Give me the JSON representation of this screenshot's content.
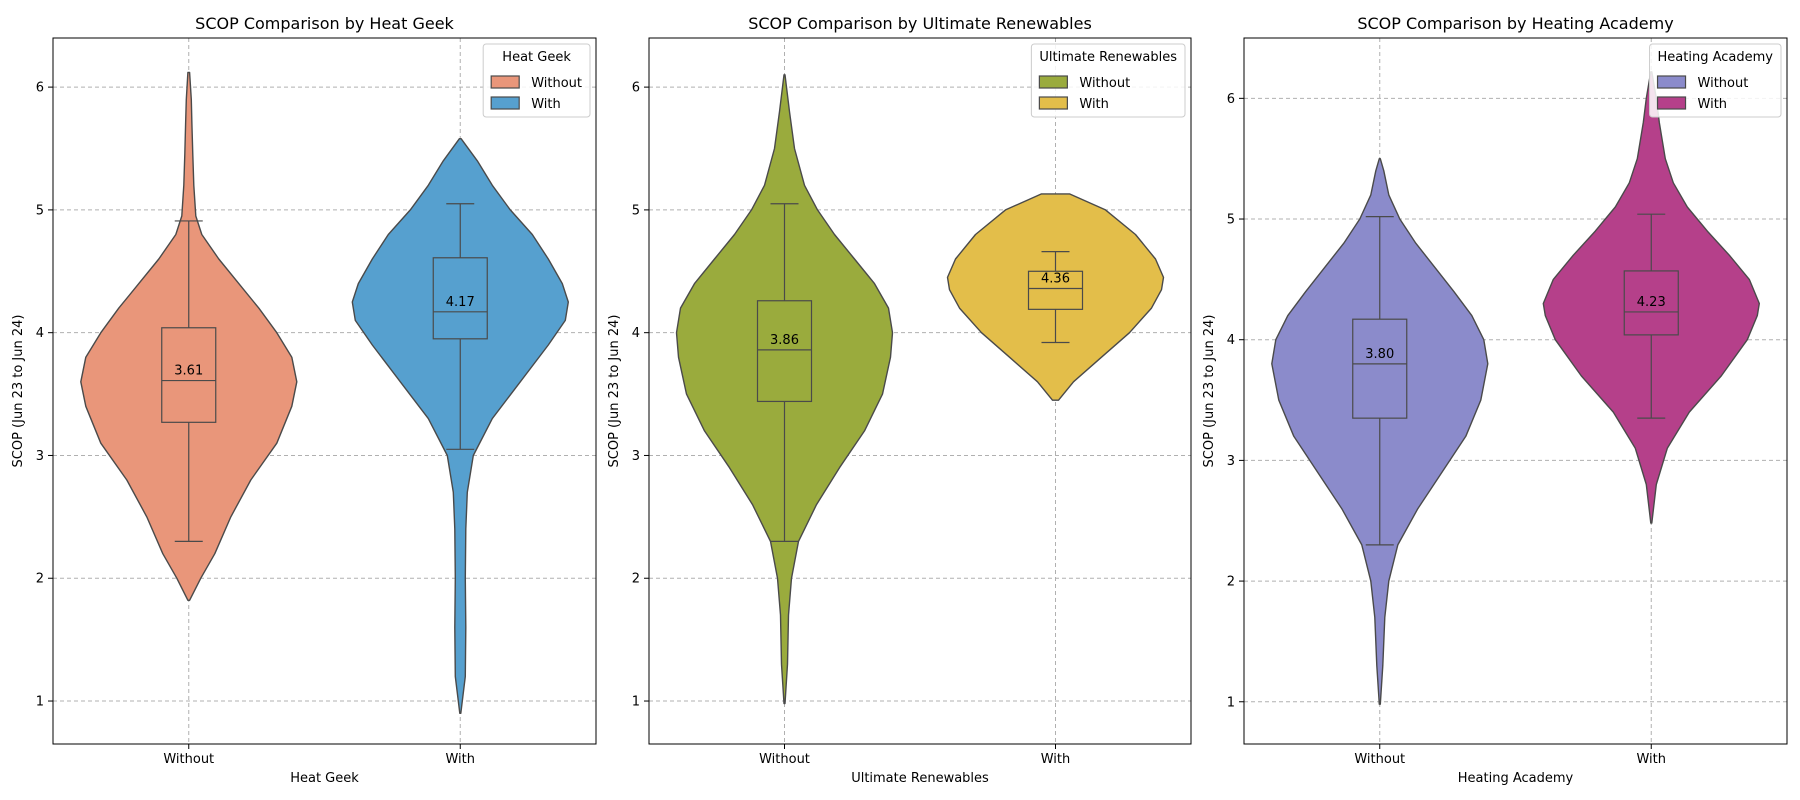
{
  "chart_data": [
    {
      "type": "violin",
      "title": "SCOP Comparison by Heat Geek",
      "xlabel": "Heat Geek",
      "ylabel": "SCOP (Jun 23 to Jun 24)",
      "ylim": [
        0.65,
        6.4
      ],
      "yticks": [
        1,
        2,
        3,
        4,
        5,
        6
      ],
      "grid": true,
      "legend": {
        "title": "Heat Geek",
        "placement": "top-right",
        "labels": [
          "Without",
          "With"
        ]
      },
      "categories": [
        "Without",
        "With"
      ],
      "groups": [
        {
          "category": "Without",
          "color": "#E9967A",
          "median_label": "3.61",
          "box": {
            "whisker_low": 2.3,
            "q1": 3.27,
            "median": 3.61,
            "q3": 4.04,
            "whisker_high": 4.91
          },
          "density": [
            [
              1.82,
              0.8
            ],
            [
              2.0,
              12
            ],
            [
              2.2,
              26
            ],
            [
              2.5,
              42
            ],
            [
              2.8,
              62
            ],
            [
              3.1,
              88
            ],
            [
              3.4,
              103
            ],
            [
              3.6,
              108
            ],
            [
              3.8,
              103
            ],
            [
              4.0,
              88
            ],
            [
              4.2,
              70
            ],
            [
              4.4,
              50
            ],
            [
              4.6,
              30
            ],
            [
              4.8,
              13
            ],
            [
              4.95,
              7
            ],
            [
              5.2,
              5
            ],
            [
              5.45,
              4
            ],
            [
              5.7,
              3.2
            ],
            [
              5.9,
              2.5
            ],
            [
              6.12,
              0.8
            ]
          ]
        },
        {
          "category": "With",
          "color": "#56A0CF",
          "median_label": "4.17",
          "box": {
            "whisker_low": 3.05,
            "q1": 3.95,
            "median": 4.17,
            "q3": 4.61,
            "whisker_high": 5.05
          },
          "density": [
            [
              0.9,
              0.5
            ],
            [
              1.2,
              5
            ],
            [
              1.6,
              5.5
            ],
            [
              2.0,
              5
            ],
            [
              2.4,
              5.5
            ],
            [
              2.7,
              7
            ],
            [
              3.0,
              13
            ],
            [
              3.3,
              32
            ],
            [
              3.6,
              60
            ],
            [
              3.9,
              88
            ],
            [
              4.1,
              105
            ],
            [
              4.25,
              108
            ],
            [
              4.4,
              102
            ],
            [
              4.6,
              88
            ],
            [
              4.8,
              72
            ],
            [
              5.0,
              50
            ],
            [
              5.2,
              32
            ],
            [
              5.4,
              17
            ],
            [
              5.58,
              0.8
            ]
          ]
        }
      ]
    },
    {
      "type": "violin",
      "title": "SCOP Comparison by Ultimate Renewables",
      "xlabel": "Ultimate Renewables",
      "ylabel": "SCOP (Jun 23 to Jun 24)",
      "ylim": [
        0.65,
        6.4
      ],
      "yticks": [
        1,
        2,
        3,
        4,
        5,
        6
      ],
      "grid": true,
      "legend": {
        "title": "Ultimate Renewables",
        "placement": "top-right",
        "labels": [
          "Without",
          "With"
        ]
      },
      "categories": [
        "Without",
        "With"
      ],
      "groups": [
        {
          "category": "Without",
          "color": "#9AAB3D",
          "median_label": "3.86",
          "box": {
            "whisker_low": 2.3,
            "q1": 3.44,
            "median": 3.86,
            "q3": 4.26,
            "whisker_high": 5.05
          },
          "density": [
            [
              0.98,
              0.5
            ],
            [
              1.3,
              3
            ],
            [
              1.7,
              4
            ],
            [
              2.0,
              7
            ],
            [
              2.3,
              14
            ],
            [
              2.6,
              32
            ],
            [
              2.9,
              55
            ],
            [
              3.2,
              80
            ],
            [
              3.5,
              98
            ],
            [
              3.8,
              106
            ],
            [
              4.0,
              108
            ],
            [
              4.2,
              104
            ],
            [
              4.4,
              90
            ],
            [
              4.6,
              70
            ],
            [
              4.8,
              50
            ],
            [
              5.0,
              33
            ],
            [
              5.2,
              20
            ],
            [
              5.5,
              10
            ],
            [
              5.8,
              5
            ],
            [
              6.1,
              0.5
            ]
          ]
        },
        {
          "category": "With",
          "color": "#E3BE4A",
          "median_label": "4.36",
          "box": {
            "whisker_low": 3.92,
            "q1": 4.19,
            "median": 4.36,
            "q3": 4.5,
            "whisker_high": 4.66
          },
          "density": [
            [
              3.45,
              3
            ],
            [
              3.6,
              18
            ],
            [
              3.8,
              46
            ],
            [
              4.0,
              74
            ],
            [
              4.2,
              96
            ],
            [
              4.35,
              106
            ],
            [
              4.45,
              108
            ],
            [
              4.6,
              100
            ],
            [
              4.8,
              80
            ],
            [
              5.0,
              50
            ],
            [
              5.13,
              14
            ]
          ]
        }
      ]
    },
    {
      "type": "violin",
      "title": "SCOP Comparison by Heating Academy",
      "xlabel": "Heating Academy",
      "ylabel": "SCOP (Jun 23 to Jun 24)",
      "ylim": [
        0.65,
        6.5
      ],
      "yticks": [
        1,
        2,
        3,
        4,
        5,
        6
      ],
      "grid": true,
      "legend": {
        "title": "Heating Academy",
        "placement": "top-right",
        "labels": [
          "Without",
          "With"
        ]
      },
      "categories": [
        "Without",
        "With"
      ],
      "groups": [
        {
          "category": "Without",
          "color": "#8B8BCB",
          "median_label": "3.80",
          "box": {
            "whisker_low": 2.3,
            "q1": 3.35,
            "median": 3.8,
            "q3": 4.17,
            "whisker_high": 5.02
          },
          "density": [
            [
              0.98,
              0.5
            ],
            [
              1.3,
              3
            ],
            [
              1.7,
              5
            ],
            [
              2.0,
              9
            ],
            [
              2.3,
              18
            ],
            [
              2.6,
              38
            ],
            [
              2.9,
              62
            ],
            [
              3.2,
              86
            ],
            [
              3.5,
              101
            ],
            [
              3.8,
              108
            ],
            [
              4.0,
              104
            ],
            [
              4.2,
              92
            ],
            [
              4.4,
              74
            ],
            [
              4.6,
              55
            ],
            [
              4.8,
              36
            ],
            [
              5.0,
              20
            ],
            [
              5.2,
              9
            ],
            [
              5.4,
              4
            ],
            [
              5.5,
              0.5
            ]
          ]
        },
        {
          "category": "With",
          "color": "#B5408A",
          "median_label": "4.23",
          "box": {
            "whisker_low": 3.35,
            "q1": 4.04,
            "median": 4.23,
            "q3": 4.57,
            "whisker_high": 5.04
          },
          "density": [
            [
              2.48,
              0.5
            ],
            [
              2.8,
              5
            ],
            [
              3.1,
              16
            ],
            [
              3.4,
              38
            ],
            [
              3.7,
              70
            ],
            [
              4.0,
              96
            ],
            [
              4.2,
              106
            ],
            [
              4.3,
              108
            ],
            [
              4.5,
              98
            ],
            [
              4.7,
              78
            ],
            [
              4.9,
              56
            ],
            [
              5.1,
              36
            ],
            [
              5.3,
              22
            ],
            [
              5.5,
              14
            ],
            [
              5.8,
              8
            ],
            [
              6.0,
              5
            ],
            [
              6.22,
              0.5
            ]
          ]
        }
      ]
    }
  ]
}
